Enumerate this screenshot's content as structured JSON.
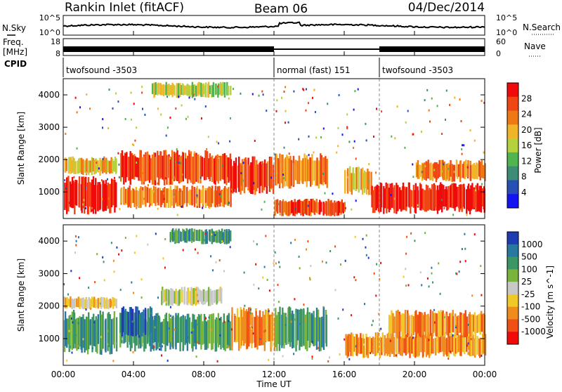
{
  "header": {
    "title": "Rankin Inlet (fitACF)",
    "beam": "Beam 06",
    "date": "04/Dec/2014"
  },
  "noise_panel": {
    "left_label": "N.Sky",
    "right_label": "N.Search",
    "left_ticks": [
      "10^5",
      "10^0"
    ],
    "right_ticks": [
      "10^5",
      "10^0"
    ]
  },
  "freq_panel": {
    "left_label_1": "Freq.",
    "left_label_2": "[MHz]",
    "left_ticks": [
      "18",
      "8"
    ],
    "right_label": "Nave",
    "right_ticks": [
      "60",
      "0"
    ]
  },
  "cpid_panel": {
    "label": "CPID",
    "segments": [
      {
        "text": "twofsound -3503",
        "start_hour": 0,
        "end_hour": 12
      },
      {
        "text": "normal (fast) 151",
        "start_hour": 12,
        "end_hour": 18
      },
      {
        "text": "twofsound -3503",
        "start_hour": 18,
        "end_hour": 24
      }
    ]
  },
  "colors": {
    "power_scale": [
      "#1414f0",
      "#2850b4",
      "#3c8c78",
      "#50b450",
      "#b4d23c",
      "#f0b428",
      "#f07814",
      "#f04614",
      "#f00a0a"
    ],
    "velocity_scale": [
      "#1e3cb4",
      "#2878a0",
      "#3c9664",
      "#78b43c",
      "#c8c8c8",
      "#f0c828",
      "#f08c1e",
      "#f05014",
      "#f00a0a"
    ]
  },
  "chart_data": [
    {
      "type": "heatmap",
      "name": "Power",
      "xlabel": "",
      "ylabel": "Slant Range [km]",
      "xlim": [
        0,
        24
      ],
      "ylim": [
        180,
        4500
      ],
      "yticks": [
        1000,
        2000,
        3000,
        4000
      ],
      "colorbar": {
        "label": "Power [dB]",
        "range": [
          0,
          32
        ],
        "ticks": [
          "4",
          "8",
          "12",
          "16",
          "20",
          "24",
          "28"
        ]
      },
      "x_ticks": [
        "00:00",
        "04:00",
        "08:00",
        "12:00",
        "16:00",
        "20:00",
        "00:00"
      ],
      "regions": [
        {
          "t0": 0.0,
          "t1": 3.0,
          "r0": 300,
          "r1": 1500,
          "power": 30
        },
        {
          "t0": 0.0,
          "t1": 3.0,
          "r0": 1500,
          "r1": 2100,
          "power": 18
        },
        {
          "t0": 3.2,
          "t1": 9.5,
          "r0": 1200,
          "r1": 2300,
          "power": 26
        },
        {
          "t0": 3.2,
          "t1": 9.5,
          "r0": 500,
          "r1": 1200,
          "power": 24
        },
        {
          "t0": 5.0,
          "t1": 9.5,
          "r0": 3900,
          "r1": 4400,
          "power": 16
        },
        {
          "t0": 9.5,
          "t1": 12.0,
          "r0": 900,
          "r1": 2100,
          "power": 26
        },
        {
          "t0": 12.0,
          "t1": 15.0,
          "r0": 1100,
          "r1": 2200,
          "power": 22
        },
        {
          "t0": 12.0,
          "t1": 16.0,
          "r0": 250,
          "r1": 800,
          "power": 26
        },
        {
          "t0": 16.0,
          "t1": 17.5,
          "r0": 900,
          "r1": 1800,
          "power": 18
        },
        {
          "t0": 17.5,
          "t1": 24.0,
          "r0": 300,
          "r1": 1300,
          "power": 30
        },
        {
          "t0": 20.0,
          "t1": 24.0,
          "r0": 1300,
          "r1": 2000,
          "power": 24
        }
      ]
    },
    {
      "type": "heatmap",
      "name": "Velocity",
      "xlabel": "Time UT",
      "ylabel": "Slant Range [km]",
      "xlim": [
        0,
        24
      ],
      "ylim": [
        180,
        4500
      ],
      "yticks": [
        1000,
        2000,
        3000,
        4000
      ],
      "colorbar": {
        "label": "Velocity [m s^-1]",
        "ticks": [
          "1000",
          "500",
          "100",
          "25",
          "-25",
          "-100",
          "-500",
          "-1000"
        ]
      },
      "x_ticks": [
        "00:00",
        "04:00",
        "08:00",
        "12:00",
        "16:00",
        "20:00",
        "00:00"
      ],
      "regions": [
        {
          "t0": 0.0,
          "t1": 3.0,
          "r0": 500,
          "r1": 1900,
          "velocity": 100
        },
        {
          "t0": 0.0,
          "t1": 3.0,
          "r0": 1900,
          "r1": 2300,
          "velocity": -100
        },
        {
          "t0": 3.2,
          "t1": 9.5,
          "r0": 600,
          "r1": 1800,
          "velocity": 200
        },
        {
          "t0": 3.2,
          "t1": 5.0,
          "r0": 1000,
          "r1": 2000,
          "velocity": 800
        },
        {
          "t0": 5.5,
          "t1": 9.0,
          "r0": 2000,
          "r1": 2600,
          "velocity": 0
        },
        {
          "t0": 6.0,
          "t1": 9.5,
          "r0": 3900,
          "r1": 4400,
          "velocity": 200
        },
        {
          "t0": 9.5,
          "t1": 12.0,
          "r0": 600,
          "r1": 2000,
          "velocity": -150
        },
        {
          "t0": 12.0,
          "t1": 15.0,
          "r0": 600,
          "r1": 2000,
          "velocity": 150
        },
        {
          "t0": 16.0,
          "t1": 24.0,
          "r0": 400,
          "r1": 1200,
          "velocity": -200
        },
        {
          "t0": 18.5,
          "t1": 24.0,
          "r0": 1000,
          "r1": 1900,
          "velocity": -300
        }
      ]
    }
  ]
}
